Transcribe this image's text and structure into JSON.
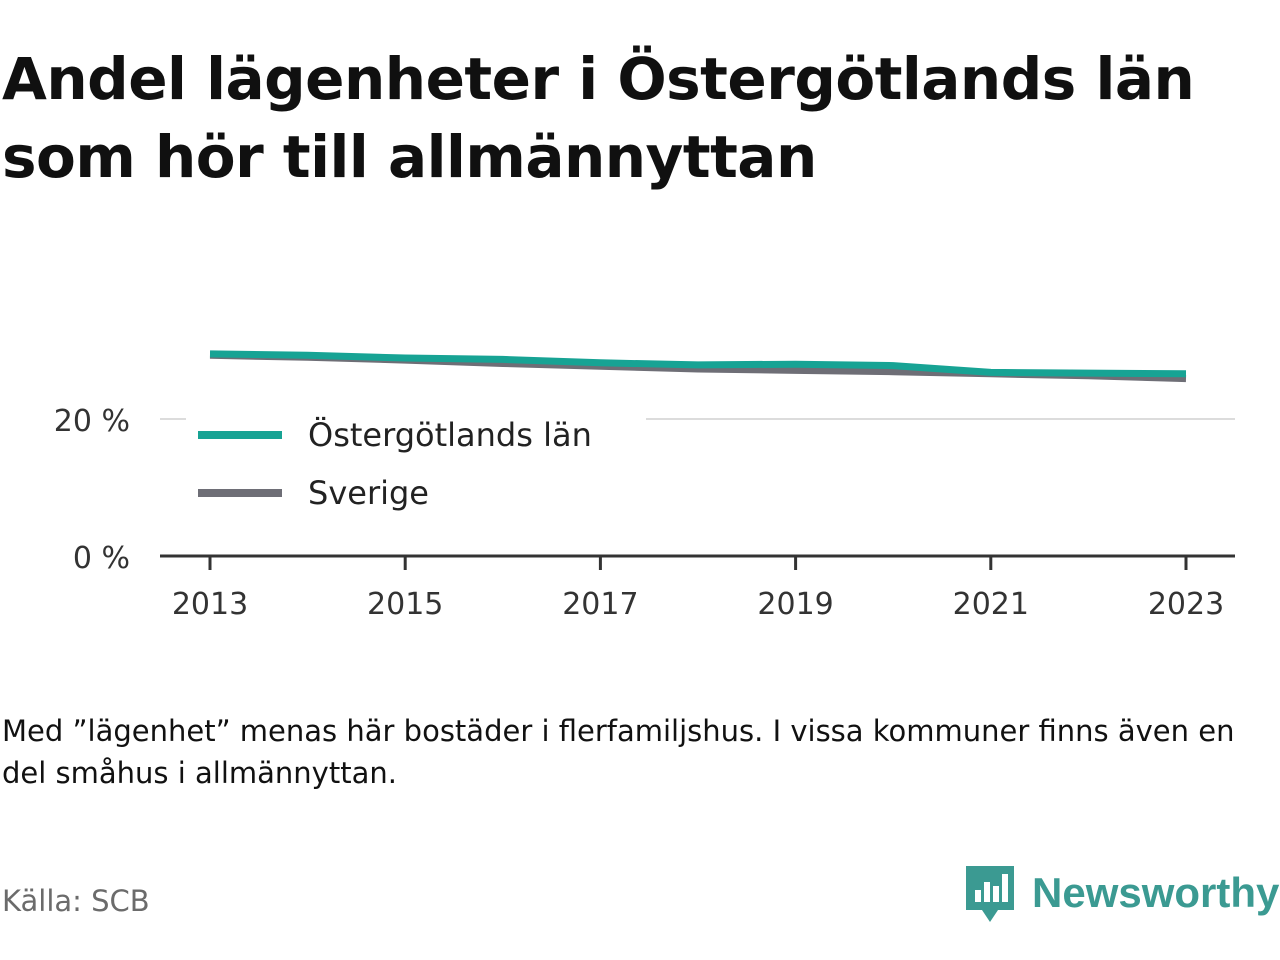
{
  "title": "Andel lägenheter i Östergötlands län som hör till allmännyttan",
  "note": "Med ”lägenhet” menas här bostäder i flerfamiljshus. I vissa kommuner finns även en del småhus i allmännyttan.",
  "source": "Källa: SCB",
  "brand": {
    "name": "Newsworthy",
    "color": "#3b9a92"
  },
  "chart_data": {
    "type": "line",
    "x": [
      2013,
      2014,
      2015,
      2016,
      2017,
      2018,
      2019,
      2020,
      2021,
      2022,
      2023
    ],
    "x_ticks": [
      "2013",
      "2015",
      "2017",
      "2019",
      "2021",
      "2023"
    ],
    "y_ticks": [
      "0 %",
      "20 %"
    ],
    "ylim": [
      0,
      30
    ],
    "grid": true,
    "legend_position": "top-left",
    "series": [
      {
        "name": "Östergötlands län",
        "color": "#17a394",
        "values": [
          29.5,
          29.3,
          28.9,
          28.7,
          28.2,
          27.9,
          28.0,
          27.8,
          26.8,
          26.7,
          26.6
        ]
      },
      {
        "name": "Sverige",
        "color": "#6e6e76",
        "values": [
          29.3,
          29.0,
          28.6,
          28.1,
          27.7,
          27.3,
          27.1,
          26.9,
          26.6,
          26.3,
          25.9
        ]
      }
    ]
  }
}
